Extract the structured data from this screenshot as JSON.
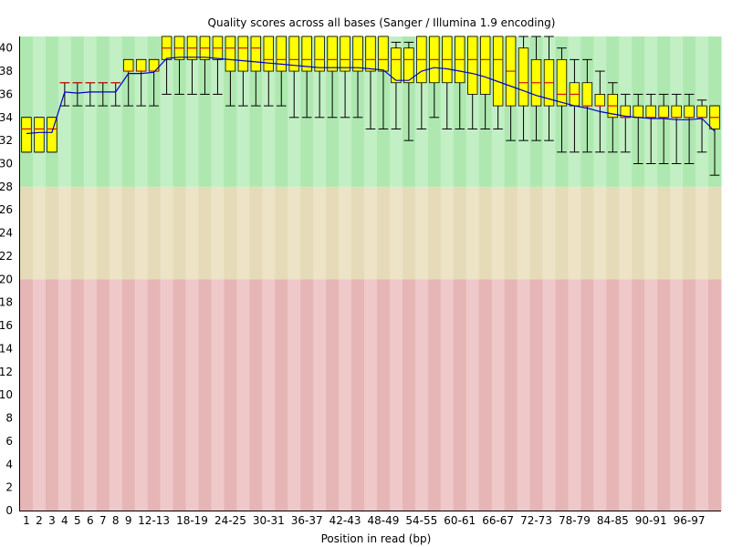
{
  "chart_data": {
    "type": "box",
    "title": "Quality scores across all bases (Sanger / Illumina 1.9 encoding)",
    "xlabel": "Position in read (bp)",
    "ylabel": "",
    "ylim": [
      0,
      41
    ],
    "yticks": [
      0,
      2,
      4,
      6,
      8,
      10,
      12,
      14,
      16,
      18,
      20,
      22,
      24,
      26,
      28,
      30,
      32,
      34,
      36,
      38,
      40
    ],
    "zones": [
      {
        "from": 28,
        "to": 41,
        "color": "#aee8b0",
        "alt_color": "#c3efc5"
      },
      {
        "from": 20,
        "to": 28,
        "color": "#e6dbb8",
        "alt_color": "#ede3c6"
      },
      {
        "from": 0,
        "to": 20,
        "color": "#e6b6b6",
        "alt_color": "#efc9c9"
      }
    ],
    "colors": {
      "box": "#ffff00",
      "box_stroke": "#000000",
      "median": "#d21414",
      "mean_line": "#0000cc",
      "whisker": "#000000"
    },
    "categories": [
      "1",
      "2",
      "3",
      "4",
      "5",
      "6",
      "7",
      "8",
      "9",
      "10-11",
      "12-13",
      "14-15",
      "16-17",
      "18-19",
      "20-21",
      "22-23",
      "24-25",
      "26-27",
      "28-29",
      "30-31",
      "32-33",
      "34-35",
      "36-37",
      "38-39",
      "40-41",
      "42-43",
      "44-45",
      "46-47",
      "48-49",
      "50-51",
      "52-53",
      "54-55",
      "56-57",
      "58-59",
      "60-61",
      "62-63",
      "64-65",
      "66-67",
      "68-69",
      "70-71",
      "72-73",
      "74-75",
      "76-77",
      "78-79",
      "80-81",
      "82-83",
      "84-85",
      "86-87",
      "88-89",
      "90-91",
      "92-93",
      "94-95",
      "96-97",
      "98-99",
      "100-101"
    ],
    "tick_labels": [
      "1",
      "2",
      "3",
      "4",
      "5",
      "6",
      "7",
      "8",
      "9",
      "12-13",
      "18-19",
      "24-25",
      "30-31",
      "36-37",
      "42-43",
      "48-49",
      "54-55",
      "60-61",
      "66-67",
      "72-73",
      "78-79",
      "84-85",
      "90-91",
      "96-97"
    ],
    "tick_positions": [
      0,
      1,
      2,
      3,
      4,
      5,
      6,
      7,
      8,
      10,
      13,
      16,
      19,
      22,
      25,
      28,
      31,
      34,
      37,
      40,
      43,
      46,
      49,
      52
    ],
    "series": {
      "q1": [
        31,
        31,
        31,
        37,
        37,
        37,
        37,
        37,
        38,
        38,
        38,
        39,
        39,
        39,
        39,
        39,
        38,
        38,
        38,
        38,
        38,
        38,
        38,
        38,
        38,
        38,
        38,
        38,
        38,
        37,
        37,
        37,
        37,
        37,
        37,
        36,
        36,
        35,
        35,
        35,
        35,
        35,
        35,
        35,
        35,
        35,
        34,
        34,
        34,
        34,
        34,
        34,
        34,
        34,
        33
      ],
      "q3": [
        34,
        34,
        34,
        37,
        37,
        37,
        37,
        37,
        39,
        39,
        39,
        41,
        41,
        41,
        41,
        41,
        41,
        41,
        41,
        41,
        41,
        41,
        41,
        41,
        41,
        41,
        41,
        41,
        41,
        40,
        40,
        41,
        41,
        41,
        41,
        41,
        41,
        41,
        41,
        40,
        39,
        39,
        39,
        37,
        37,
        36,
        36,
        35,
        35,
        35,
        35,
        35,
        35,
        35,
        35
      ],
      "median": [
        33,
        33,
        33,
        37,
        37,
        37,
        37,
        37,
        38,
        38,
        38,
        40,
        40,
        40,
        40,
        40,
        40,
        40,
        40,
        39,
        39,
        39,
        39,
        39,
        39,
        39,
        39,
        39,
        39,
        39,
        39,
        39,
        39,
        39,
        39,
        39,
        39,
        39,
        38,
        37,
        37,
        37,
        36,
        36,
        35,
        35,
        35,
        34,
        34,
        34,
        34,
        34,
        34,
        34,
        34
      ],
      "whisker_low": [
        31,
        31,
        31,
        35,
        35,
        35,
        35,
        35,
        35,
        35,
        35,
        36,
        36,
        36,
        36,
        36,
        35,
        35,
        35,
        35,
        35,
        34,
        34,
        34,
        34,
        34,
        34,
        33,
        33,
        33,
        32,
        33,
        34,
        33,
        33,
        33,
        33,
        33,
        32,
        32,
        32,
        32,
        31,
        31,
        31,
        31,
        31,
        31,
        30,
        30,
        30,
        30,
        30,
        31,
        29
      ],
      "whisker_high": [
        34,
        34,
        34,
        37,
        37,
        37,
        37,
        37,
        39,
        39,
        39,
        41,
        41,
        41,
        41,
        41,
        41,
        41,
        41,
        41,
        41,
        41,
        41,
        41,
        41,
        41,
        41,
        41,
        41,
        40.5,
        40.5,
        41,
        41,
        41,
        41,
        41,
        41,
        41,
        41,
        41,
        41,
        41,
        40,
        39,
        39,
        38,
        37,
        36,
        36,
        36,
        36,
        36,
        36,
        35.5,
        35
      ],
      "mean": [
        32.6,
        32.7,
        32.7,
        36.2,
        36.1,
        36.2,
        36.2,
        36.2,
        37.8,
        37.8,
        37.9,
        39.1,
        39.2,
        39.2,
        39.2,
        39.1,
        39.0,
        38.9,
        38.8,
        38.7,
        38.6,
        38.5,
        38.4,
        38.3,
        38.3,
        38.3,
        38.3,
        38.2,
        38.1,
        37.2,
        37.2,
        38.0,
        38.3,
        38.2,
        38.0,
        37.8,
        37.5,
        37.1,
        36.7,
        36.3,
        35.9,
        35.6,
        35.3,
        35.0,
        34.8,
        34.5,
        34.3,
        34.1,
        34.0,
        33.9,
        33.9,
        33.8,
        33.8,
        33.9,
        32.8
      ]
    }
  }
}
